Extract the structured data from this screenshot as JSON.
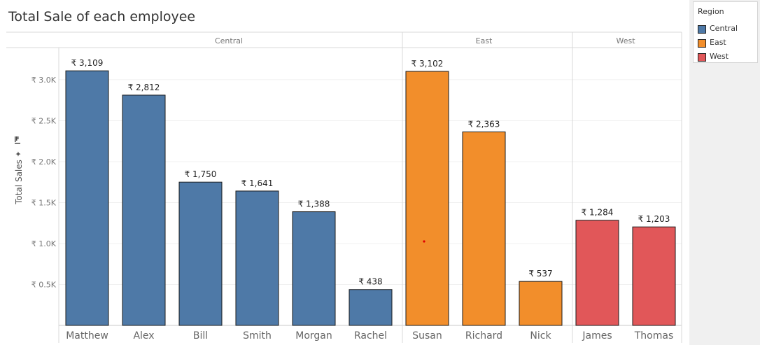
{
  "title": "Total Sale of each employee",
  "legend": {
    "title": "Region",
    "items": [
      {
        "label": "Central",
        "color": "#4e79a7"
      },
      {
        "label": "East",
        "color": "#f28e2b"
      },
      {
        "label": "West",
        "color": "#e15759"
      }
    ]
  },
  "chart_data": {
    "type": "bar",
    "title": "Total Sale of each employee",
    "ylabel": "Total Sales",
    "xlabel": "",
    "ylim": [
      0,
      3300
    ],
    "yticks": [
      500,
      1000,
      1500,
      2000,
      2500,
      3000
    ],
    "ytick_labels": [
      "₹ 0.5K",
      "₹ 1.0K",
      "₹ 1.5K",
      "₹ 2.0K",
      "₹ 2.5K",
      "₹ 3.0K"
    ],
    "grid": true,
    "legend_position": "top-right",
    "groups": [
      {
        "name": "Central",
        "color": "#4e79a7",
        "categories": [
          "Matthew",
          "Alex",
          "Bill",
          "Smith",
          "Morgan",
          "Rachel"
        ],
        "values": [
          3109,
          2812,
          1750,
          1641,
          1388,
          438
        ],
        "labels": [
          "₹ 3,109",
          "₹ 2,812",
          "₹ 1,750",
          "₹ 1,641",
          "₹ 1,388",
          "₹ 438"
        ]
      },
      {
        "name": "East",
        "color": "#f28e2b",
        "categories": [
          "Susan",
          "Richard",
          "Nick"
        ],
        "values": [
          3102,
          2363,
          537
        ],
        "labels": [
          "₹ 3,102",
          "₹ 2,363",
          "₹ 537"
        ]
      },
      {
        "name": "West",
        "color": "#e15759",
        "categories": [
          "James",
          "Thomas"
        ],
        "values": [
          1284,
          1203
        ],
        "labels": [
          "₹ 1,284",
          "₹ 1,203"
        ]
      }
    ]
  }
}
